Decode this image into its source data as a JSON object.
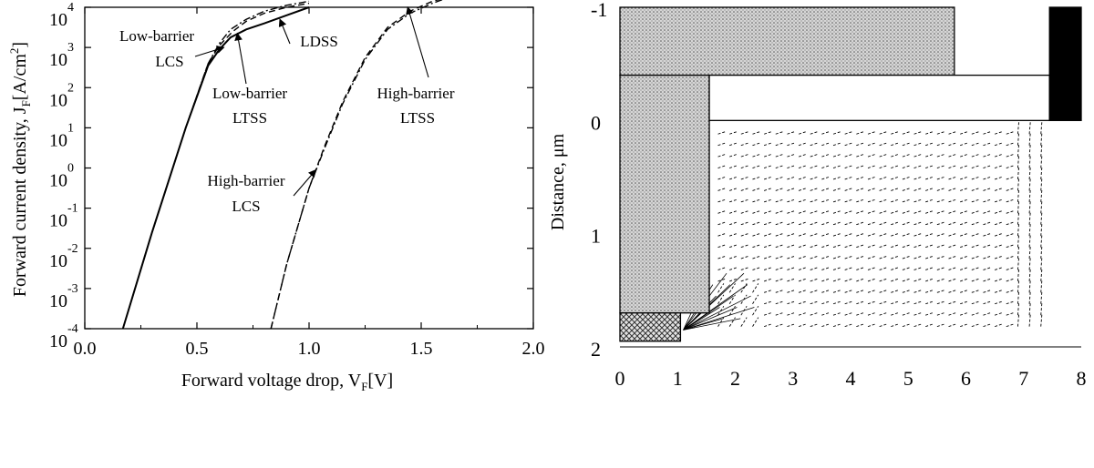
{
  "chart_data": [
    {
      "type": "line",
      "title": "",
      "xlabel": "Forward voltage drop, V",
      "xlabel_sub": "F",
      "xlabel_unit": "[V]",
      "ylabel": "Forward current density, J",
      "ylabel_sub": "F",
      "ylabel_unit": "[A/cm",
      "ylabel_sup": "2",
      "ylabel_close": "]",
      "xlim": [
        0.0,
        2.0
      ],
      "ylim_log10": [
        -4,
        4
      ],
      "y_scale": "log",
      "grid": false,
      "x_ticks": [
        {
          "v": 0.0,
          "label": "0.0"
        },
        {
          "v": 0.5,
          "label": "0.5"
        },
        {
          "v": 1.0,
          "label": "1.0"
        },
        {
          "v": 1.5,
          "label": "1.5"
        },
        {
          "v": 2.0,
          "label": "2.0"
        }
      ],
      "y_ticks": [
        {
          "exp": -4,
          "base": "10",
          "sup": "-4"
        },
        {
          "exp": -3,
          "base": "10",
          "sup": "-3"
        },
        {
          "exp": -2,
          "base": "10",
          "sup": "-2"
        },
        {
          "exp": -1,
          "base": "10",
          "sup": "-1"
        },
        {
          "exp": 0,
          "base": "10",
          "sup": "0"
        },
        {
          "exp": 1,
          "base": "10",
          "sup": "1"
        },
        {
          "exp": 2,
          "base": "10",
          "sup": "2"
        },
        {
          "exp": 3,
          "base": "10",
          "sup": "3"
        },
        {
          "exp": 4,
          "base": "10",
          "sup": "4"
        }
      ],
      "series": [
        {
          "key": "lb-lcs",
          "style": "dashdot",
          "x": [
            0.17,
            0.3,
            0.45,
            0.55,
            0.6,
            0.65,
            0.72,
            0.8,
            0.9,
            1.0
          ],
          "y": [
            -4,
            -1.6,
            1.0,
            2.6,
            3.1,
            3.45,
            3.7,
            3.9,
            4.05,
            4.15
          ]
        },
        {
          "key": "lb-ltss",
          "style": "dashed",
          "x": [
            0.17,
            0.3,
            0.45,
            0.55,
            0.6,
            0.66,
            0.72,
            0.8,
            0.9,
            1.0
          ],
          "y": [
            -4,
            -1.6,
            1.0,
            2.6,
            3.05,
            3.4,
            3.65,
            3.85,
            4.0,
            4.1
          ]
        },
        {
          "key": "ldss",
          "style": "solid",
          "x": [
            0.17,
            0.3,
            0.45,
            0.55,
            0.6,
            0.65,
            0.72,
            0.8,
            0.9,
            1.0
          ],
          "y": [
            -4,
            -1.6,
            1.0,
            2.55,
            2.95,
            3.25,
            3.45,
            3.6,
            3.8,
            4.0
          ]
        },
        {
          "key": "hb-lcs",
          "style": "dashdot",
          "x": [
            0.83,
            0.9,
            1.0,
            1.07,
            1.15,
            1.25,
            1.35,
            1.45,
            1.55,
            1.65
          ],
          "y": [
            -4,
            -2.4,
            -0.5,
            0.5,
            1.6,
            2.7,
            3.45,
            3.85,
            4.1,
            4.3
          ]
        },
        {
          "key": "hb-ltss",
          "style": "dashed",
          "x": [
            0.83,
            0.9,
            1.0,
            1.07,
            1.15,
            1.25,
            1.35,
            1.45,
            1.55,
            1.65
          ],
          "y": [
            -4,
            -2.4,
            -0.5,
            0.55,
            1.65,
            2.75,
            3.5,
            3.9,
            4.15,
            4.3
          ]
        }
      ],
      "annotations": [
        {
          "key": "a-lb-lcs",
          "lines": [
            "Low-barrier",
            "LCS"
          ],
          "target": [
            0.62,
            3.0
          ]
        },
        {
          "key": "a-lb-ltss",
          "lines": [
            "Low-barrier",
            "LTSS"
          ],
          "target": [
            0.68,
            3.35
          ]
        },
        {
          "key": "a-ldss",
          "lines": [
            "LDSS"
          ],
          "target": [
            0.87,
            3.7
          ]
        },
        {
          "key": "a-hb-ltss",
          "lines": [
            "High-barrier",
            "LTSS"
          ],
          "target": [
            1.44,
            4.0
          ]
        },
        {
          "key": "a-hb-lcs",
          "lines": [
            "High-barrier",
            "LCS"
          ],
          "target": [
            1.03,
            -0.05
          ]
        }
      ]
    },
    {
      "type": "diagram",
      "title": "",
      "ylabel": "Distance, ",
      "ylabel_unit": "μm",
      "xlim": [
        0,
        8
      ],
      "ylim": [
        -1,
        2
      ],
      "x_ticks": [
        "0",
        "1",
        "2",
        "3",
        "4",
        "5",
        "6",
        "7",
        "8"
      ],
      "y_ticks": [
        "-1",
        "0",
        "1",
        "2"
      ],
      "regions": [
        {
          "key": "top-metal",
          "fill": "dotted",
          "x": [
            0,
            5.8
          ],
          "y": [
            -1,
            -0.4
          ]
        },
        {
          "key": "left-column",
          "fill": "dotted",
          "x": [
            0,
            1.55
          ],
          "y": [
            -0.4,
            1.7
          ]
        },
        {
          "key": "bottom-contact",
          "fill": "crosshatch",
          "x": [
            0,
            1.05
          ],
          "y": [
            1.7,
            1.95
          ]
        },
        {
          "key": "top-oxide",
          "fill": "white",
          "x": [
            1.55,
            7.45
          ],
          "y": [
            -0.4,
            0.0
          ]
        },
        {
          "key": "right-contact",
          "fill": "black",
          "x": [
            7.45,
            8.0
          ],
          "y": [
            -1,
            0.0
          ]
        }
      ]
    }
  ]
}
